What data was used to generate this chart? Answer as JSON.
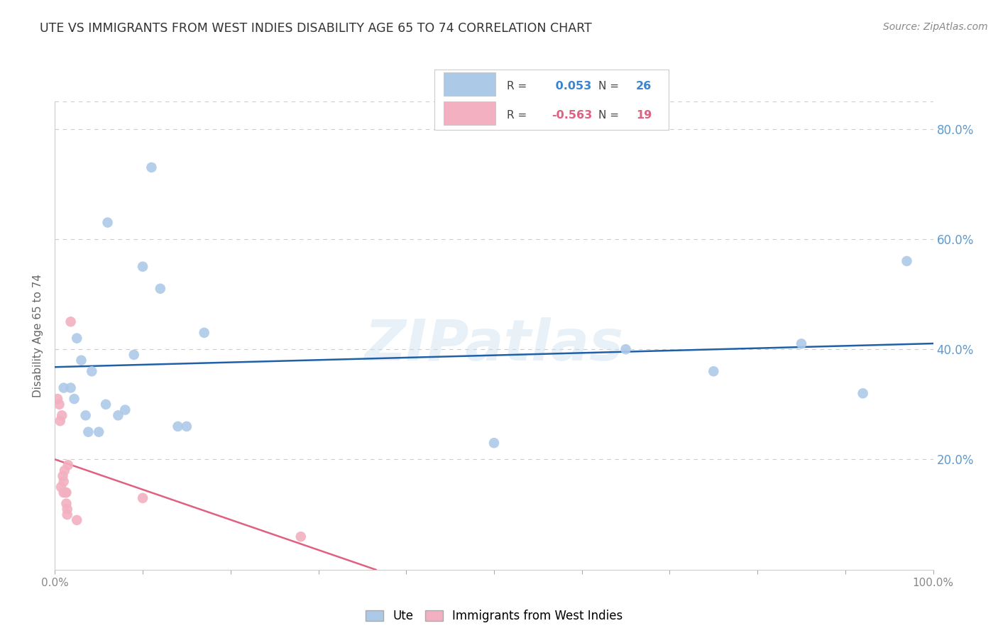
{
  "title": "UTE VS IMMIGRANTS FROM WEST INDIES DISABILITY AGE 65 TO 74 CORRELATION CHART",
  "source": "Source: ZipAtlas.com",
  "ylabel": "Disability Age 65 to 74",
  "xlim": [
    0,
    1.0
  ],
  "ylim": [
    0,
    0.85
  ],
  "ute_R": 0.053,
  "ute_N": 26,
  "immigrants_R": -0.563,
  "immigrants_N": 19,
  "ute_color": "#adc9e8",
  "immigrants_color": "#f2b0c0",
  "ute_line_color": "#2060a8",
  "immigrants_line_color": "#e06080",
  "background_color": "#ffffff",
  "watermark": "ZIPatlas",
  "ute_x": [
    0.01,
    0.018,
    0.022,
    0.025,
    0.03,
    0.035,
    0.038,
    0.042,
    0.05,
    0.058,
    0.06,
    0.072,
    0.08,
    0.09,
    0.1,
    0.11,
    0.12,
    0.14,
    0.15,
    0.17,
    0.5,
    0.65,
    0.75,
    0.85,
    0.92,
    0.97
  ],
  "ute_y": [
    0.33,
    0.33,
    0.31,
    0.42,
    0.38,
    0.28,
    0.25,
    0.36,
    0.25,
    0.3,
    0.63,
    0.28,
    0.29,
    0.39,
    0.55,
    0.73,
    0.51,
    0.26,
    0.26,
    0.43,
    0.23,
    0.4,
    0.36,
    0.41,
    0.32,
    0.56
  ],
  "immigrants_x": [
    0.003,
    0.005,
    0.006,
    0.007,
    0.008,
    0.009,
    0.01,
    0.01,
    0.011,
    0.012,
    0.013,
    0.013,
    0.014,
    0.014,
    0.015,
    0.018,
    0.025,
    0.1,
    0.28
  ],
  "immigrants_y": [
    0.31,
    0.3,
    0.27,
    0.15,
    0.28,
    0.17,
    0.16,
    0.14,
    0.18,
    0.14,
    0.14,
    0.12,
    0.11,
    0.1,
    0.19,
    0.45,
    0.09,
    0.13,
    0.06
  ]
}
